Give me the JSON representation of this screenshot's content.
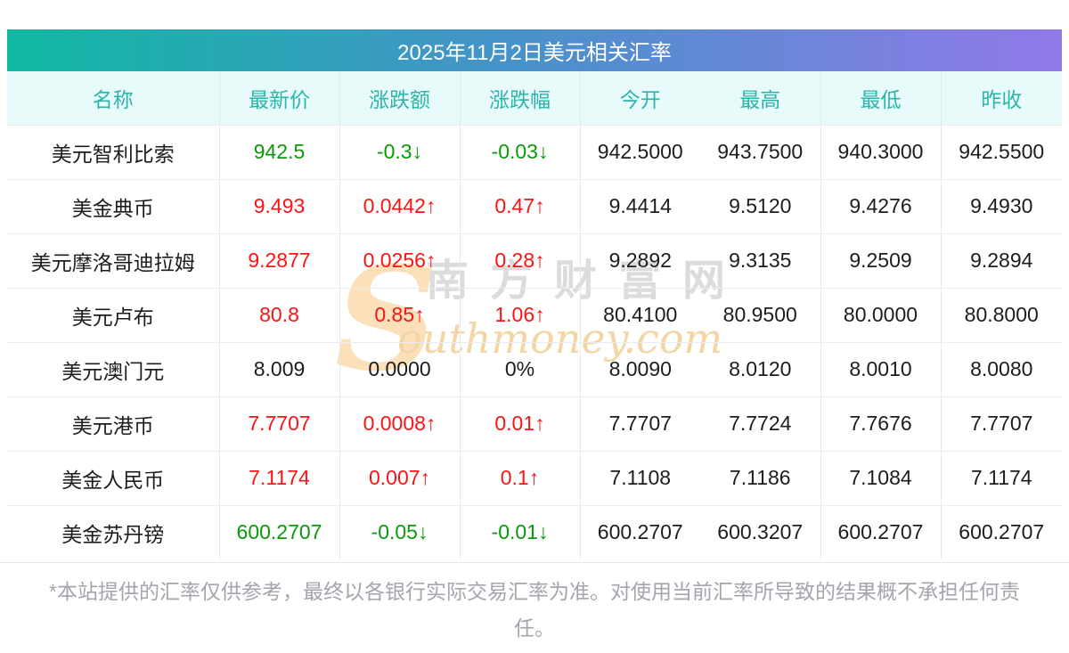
{
  "title": "2025年11月2日美元相关汇率",
  "table": {
    "columns": [
      {
        "key": "name",
        "label": "名称"
      },
      {
        "key": "latest",
        "label": "最新价"
      },
      {
        "key": "change",
        "label": "涨跌额"
      },
      {
        "key": "pct",
        "label": "涨跌幅"
      },
      {
        "key": "open",
        "label": "今开"
      },
      {
        "key": "high",
        "label": "最高"
      },
      {
        "key": "low",
        "label": "最低"
      },
      {
        "key": "prev",
        "label": "昨收"
      }
    ],
    "rows": [
      {
        "trend": "down",
        "values": {
          "name": "美元智利比索",
          "latest": "942.5",
          "change": "-0.3↓",
          "pct": "-0.03↓",
          "open": "942.5000",
          "high": "943.7500",
          "low": "940.3000",
          "prev": "942.5500"
        }
      },
      {
        "trend": "up",
        "values": {
          "name": "美金典币",
          "latest": "9.493",
          "change": "0.0442↑",
          "pct": "0.47↑",
          "open": "9.4414",
          "high": "9.5120",
          "low": "9.4276",
          "prev": "9.4930"
        }
      },
      {
        "trend": "up",
        "values": {
          "name": "美元摩洛哥迪拉姆",
          "latest": "9.2877",
          "change": "0.0256↑",
          "pct": "0.28↑",
          "open": "9.2892",
          "high": "9.3135",
          "low": "9.2509",
          "prev": "9.2894"
        }
      },
      {
        "trend": "up",
        "values": {
          "name": "美元卢布",
          "latest": "80.8",
          "change": "0.85↑",
          "pct": "1.06↑",
          "open": "80.4100",
          "high": "80.9500",
          "low": "80.0000",
          "prev": "80.8000"
        }
      },
      {
        "trend": "flat",
        "values": {
          "name": "美元澳门元",
          "latest": "8.009",
          "change": "0.0000",
          "pct": "0%",
          "open": "8.0090",
          "high": "8.0120",
          "low": "8.0010",
          "prev": "8.0080"
        }
      },
      {
        "trend": "up",
        "values": {
          "name": "美元港币",
          "latest": "7.7707",
          "change": "0.0008↑",
          "pct": "0.01↑",
          "open": "7.7707",
          "high": "7.7724",
          "low": "7.7676",
          "prev": "7.7707"
        }
      },
      {
        "trend": "up",
        "values": {
          "name": "美金人民币",
          "latest": "7.1174",
          "change": "0.007↑",
          "pct": "0.1↑",
          "open": "7.1108",
          "high": "7.1186",
          "low": "7.1084",
          "prev": "7.1174"
        }
      },
      {
        "trend": "down",
        "values": {
          "name": "美金苏丹镑",
          "latest": "600.2707",
          "change": "-0.05↓",
          "pct": "-0.01↓",
          "open": "600.2707",
          "high": "600.3207",
          "low": "600.2707",
          "prev": "600.2707"
        }
      }
    ],
    "trend_colored_columns": [
      "latest",
      "change",
      "pct"
    ],
    "columns_with_left_divider": [
      "latest",
      "change",
      "pct",
      "open",
      "low",
      "prev"
    ]
  },
  "watermark": {
    "s_glyph": "S",
    "cn": "南方财富网",
    "en": "outhmoney.com"
  },
  "footer": {
    "disclaimer": "*本站提供的汇率仅供参考，最终以各银行实际交易汇率为准。对使用当前汇率所导致的结果概不承担任何责任。"
  },
  "colors": {
    "up": "#fa1414",
    "down": "#0a9a0a",
    "flat": "#1d1d1d",
    "header_text": "#2db5ab",
    "header_bg": "#e7fbfb",
    "title_text": "#ffffff",
    "title_gradient_left": "#10b9a3",
    "title_gradient_mid": "#4792ca",
    "title_gradient_right": "#9179e8",
    "watermark_cn": "#dcdcdc",
    "watermark_en": "#f4d6a6"
  }
}
